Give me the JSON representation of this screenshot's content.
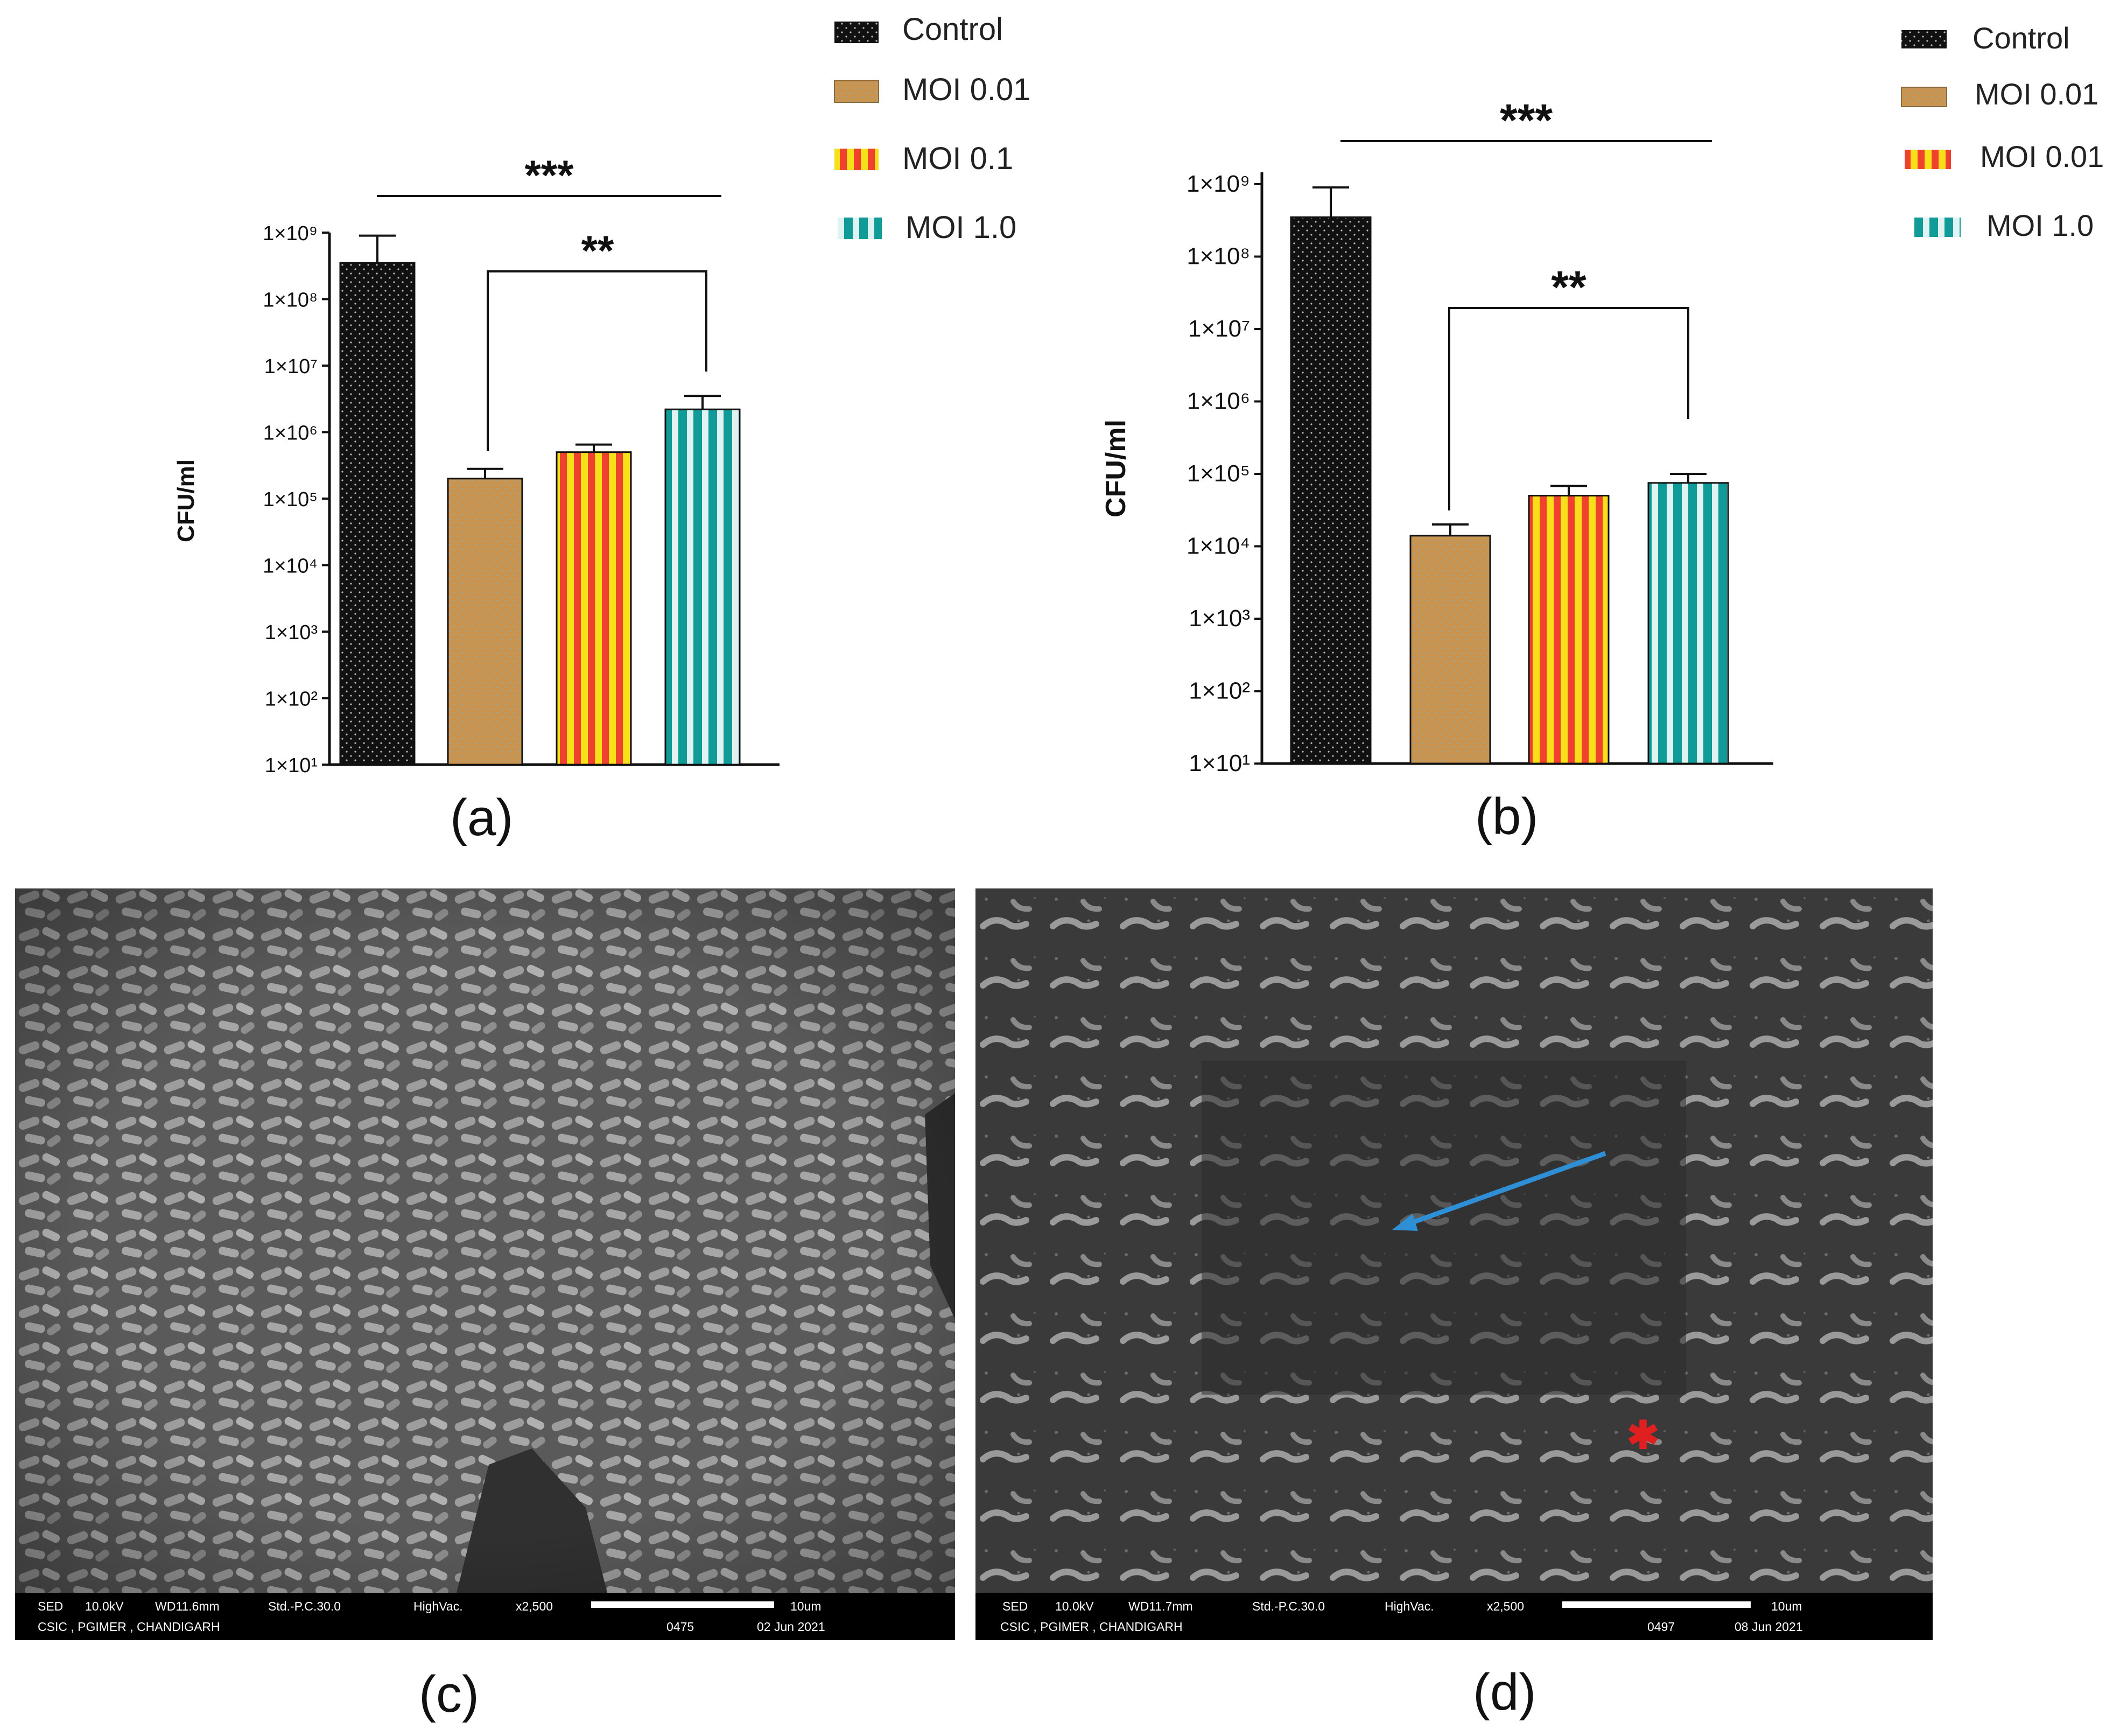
{
  "colors": {
    "control": "#111111",
    "moi001": "#c89450",
    "moi01_red": "#f0402e",
    "moi01_yellow": "#f7df1a",
    "moi10_teal": "#109a98",
    "moi10_light": "#dff3f2"
  },
  "chart_data": [
    {
      "type": "bar",
      "panel": "(a)",
      "categories": [
        "Control",
        "MOI 0.01",
        "MOI 0.1",
        "MOI 1.0"
      ],
      "values": [
        350000000,
        200000,
        500000,
        2200000
      ],
      "error_upper": [
        900000000,
        280000,
        650000,
        3500000
      ],
      "ylabel": "CFU/ml",
      "yscale": "log",
      "ylim": [
        10,
        1000000000
      ],
      "yticks": [
        "1×10¹",
        "1×10²",
        "1×10³",
        "1×10⁴",
        "1×10⁵",
        "1×10⁶",
        "1×10⁷",
        "1×10⁸",
        "1×10⁹"
      ],
      "legend": [
        "Control",
        "MOI 0.01",
        "MOI 0.1",
        "MOI 1.0"
      ],
      "legend_position": "top-right",
      "annotations": [
        "***",
        "**"
      ],
      "grid": false
    },
    {
      "type": "bar",
      "panel": "(b)",
      "categories": [
        "Control",
        "MOI 0.01",
        "MOI 0.01",
        "MOI 1.0"
      ],
      "values": [
        350000000,
        14000,
        50000,
        75000
      ],
      "error_upper": [
        900000000,
        20000,
        68000,
        100000
      ],
      "ylabel": "CFU/ml",
      "yscale": "log",
      "ylim": [
        10,
        1000000000
      ],
      "yticks": [
        "1×10¹",
        "1×10²",
        "1×10³",
        "1×10⁴",
        "1×10⁵",
        "1×10⁶",
        "1×10⁷",
        "1×10⁸",
        "1×10⁹"
      ],
      "legend": [
        "Control",
        "MOI 0.01",
        "MOI 0.01",
        "MOI 1.0"
      ],
      "legend_position": "top-right",
      "annotations": [
        "***",
        "**"
      ],
      "grid": false
    }
  ],
  "panels": {
    "a": "(a)",
    "b": "(b)",
    "c": "(c)",
    "d": "(d)"
  },
  "sem_c": {
    "mode": "SED",
    "kv": "10.0kV",
    "wd": "WD11.6mm",
    "std": "Std.-P.C.30.0",
    "vac": "HighVac.",
    "mag": "x2,500",
    "scale": "10um",
    "facility": "CSIC , PGIMER , CHANDIGARH",
    "image_no": "0475",
    "date": "02 Jun 2021"
  },
  "sem_d": {
    "mode": "SED",
    "kv": "10.0kV",
    "wd": "WD11.7mm",
    "std": "Std.-P.C.30.0",
    "vac": "HighVac.",
    "mag": "x2,500",
    "scale": "10um",
    "facility": "CSIC , PGIMER , CHANDIGARH",
    "image_no": "0497",
    "date": "08 Jun 2021"
  }
}
